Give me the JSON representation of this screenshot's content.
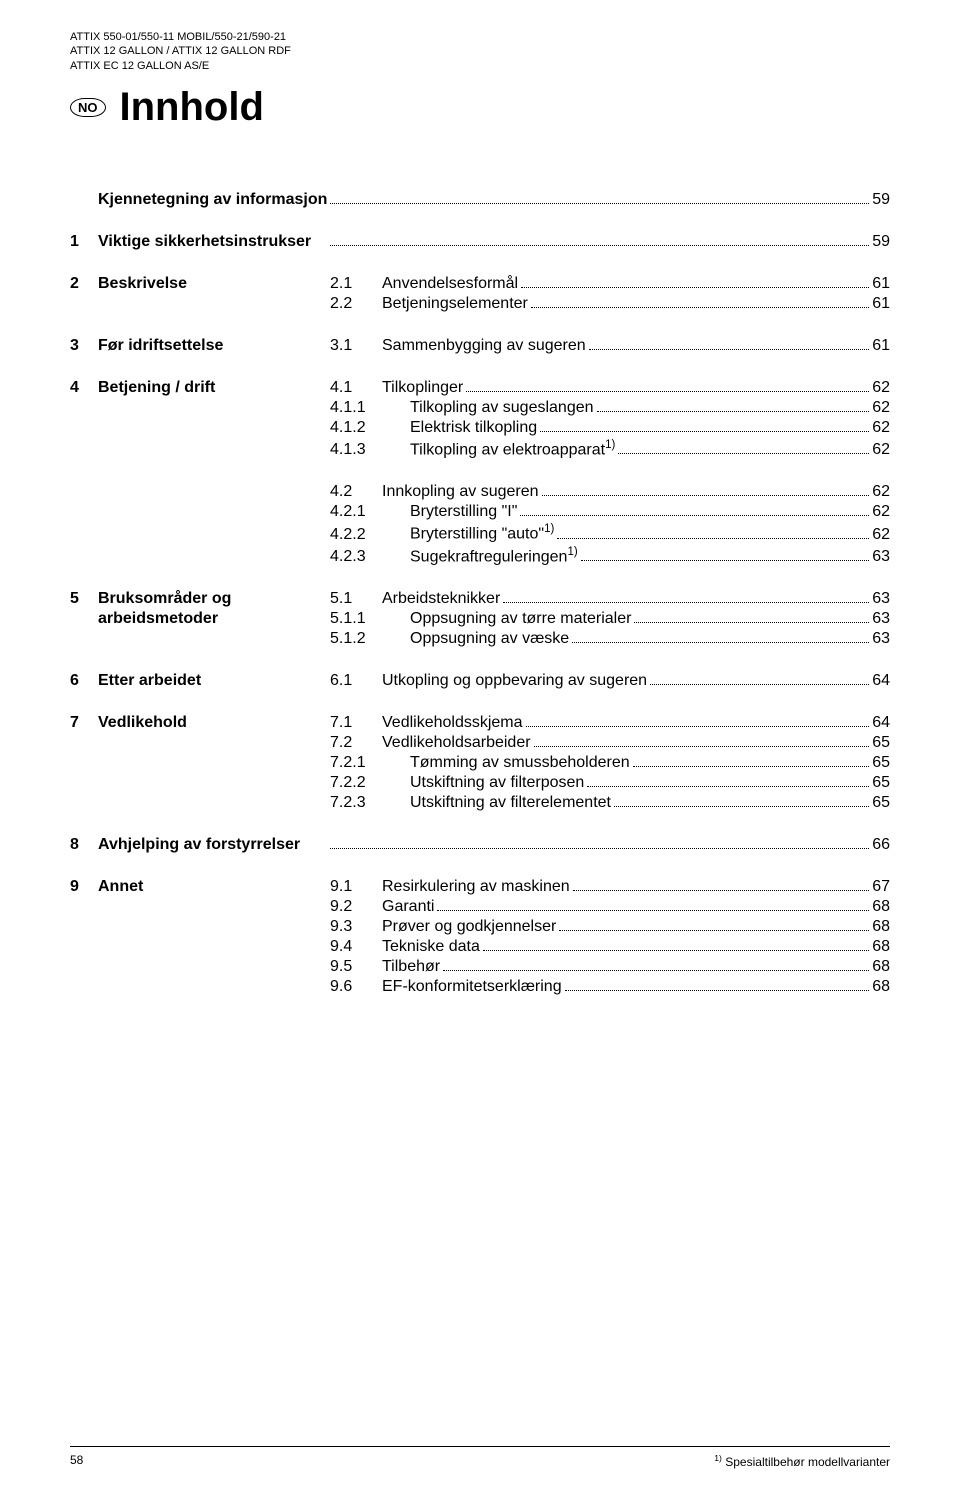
{
  "header": {
    "line1": "ATTIX 550-01/550-11 MOBIL/550-21/590-21",
    "line2": "ATTIX 12 GALLON / ATTIX 12 GALLON RDF",
    "line3": "ATTIX EC 12 GALLON AS/E",
    "lang_code": "NO",
    "title": "Innhold"
  },
  "sections": [
    {
      "left_num": "",
      "left_text": "Kjennetegning av informasjon",
      "right": [
        {
          "num": "",
          "text": "",
          "page": "59",
          "blank": true
        }
      ]
    },
    {
      "left_num": "1",
      "left_text": "Viktige sikkerhetsinstrukser",
      "right": [
        {
          "num": "",
          "text": "",
          "page": "59",
          "blank": true
        }
      ]
    },
    {
      "left_num": "2",
      "left_text": "Beskrivelse",
      "right": [
        {
          "num": "2.1",
          "text": "Anvendelsesformål",
          "page": "61"
        },
        {
          "num": "2.2",
          "text": "Betjeningselementer",
          "page": "61"
        }
      ]
    },
    {
      "left_num": "3",
      "left_text": "Før idriftsettelse",
      "right": [
        {
          "num": "3.1",
          "text": "Sammenbygging av sugeren",
          "page": "61"
        }
      ]
    },
    {
      "left_num": "4",
      "left_text": "Betjening / drift",
      "right": [
        {
          "num": "4.1",
          "text": "Tilkoplinger",
          "page": "62"
        },
        {
          "num": "4.1.1",
          "text": "Tilkopling av sugeslangen",
          "page": "62",
          "sub": true
        },
        {
          "num": "4.1.2",
          "text": "Elektrisk tilkopling",
          "page": "62",
          "sub": true
        },
        {
          "num": "4.1.3",
          "text": "Tilkopling av elektroapparat",
          "page": "62",
          "sub": true,
          "sup": "1)"
        }
      ]
    },
    {
      "left_num": "",
      "left_text": "",
      "right": [
        {
          "num": "4.2",
          "text": "Innkopling av sugeren",
          "page": "62"
        },
        {
          "num": "4.2.1",
          "text": "Bryterstilling \"I\"",
          "page": "62",
          "sub": true
        },
        {
          "num": "4.2.2",
          "text": "Bryterstilling \"auto\"",
          "page": "62",
          "sub": true,
          "sup": "1)"
        },
        {
          "num": "4.2.3",
          "text": "Sugekraftreguleringen",
          "page": "63",
          "sub": true,
          "sup": "1)"
        }
      ]
    },
    {
      "left_num": "5",
      "left_text": "Bruksområder og arbeidsmetoder",
      "right": [
        {
          "num": "5.1",
          "text": "Arbeidsteknikker",
          "page": "63"
        },
        {
          "num": "5.1.1",
          "text": "Oppsugning av tørre materialer",
          "page": "63",
          "sub": true
        },
        {
          "num": "5.1.2",
          "text": "Oppsugning av væske",
          "page": "63",
          "sub": true
        }
      ]
    },
    {
      "left_num": "6",
      "left_text": "Etter arbeidet",
      "right": [
        {
          "num": "6.1",
          "text": "Utkopling og oppbevaring av sugeren",
          "page": "64"
        }
      ]
    },
    {
      "left_num": "7",
      "left_text": "Vedlikehold",
      "right": [
        {
          "num": "7.1",
          "text": "Vedlikeholdsskjema",
          "page": "64"
        },
        {
          "num": "7.2",
          "text": "Vedlikeholdsarbeider",
          "page": "65"
        },
        {
          "num": "7.2.1",
          "text": "Tømming av smussbeholderen",
          "page": "65",
          "sub": true
        },
        {
          "num": "7.2.2",
          "text": "Utskiftning av filterposen",
          "page": "65",
          "sub": true
        },
        {
          "num": "7.2.3",
          "text": "Utskiftning av filterelementet",
          "page": "65",
          "sub": true
        }
      ]
    },
    {
      "left_num": "8",
      "left_text": "Avhjelping av forstyrrelser",
      "right": [
        {
          "num": "",
          "text": "",
          "page": "66",
          "blank": true
        }
      ]
    },
    {
      "left_num": "9",
      "left_text": "Annet",
      "right": [
        {
          "num": "9.1",
          "text": "Resirkulering av maskinen",
          "page": "67"
        },
        {
          "num": "9.2",
          "text": "Garanti",
          "page": "68"
        },
        {
          "num": "9.3",
          "text": "Prøver og godkjennelser",
          "page": "68"
        },
        {
          "num": "9.4",
          "text": "Tekniske data",
          "page": "68"
        },
        {
          "num": "9.5",
          "text": "Tilbehør",
          "page": "68"
        },
        {
          "num": "9.6",
          "text": "EF-konformitetserklæring",
          "page": "68"
        }
      ]
    }
  ],
  "footer": {
    "page_num": "58",
    "note_sup": "1)",
    "note_text": " Spesialtilbehør modellvarianter"
  }
}
